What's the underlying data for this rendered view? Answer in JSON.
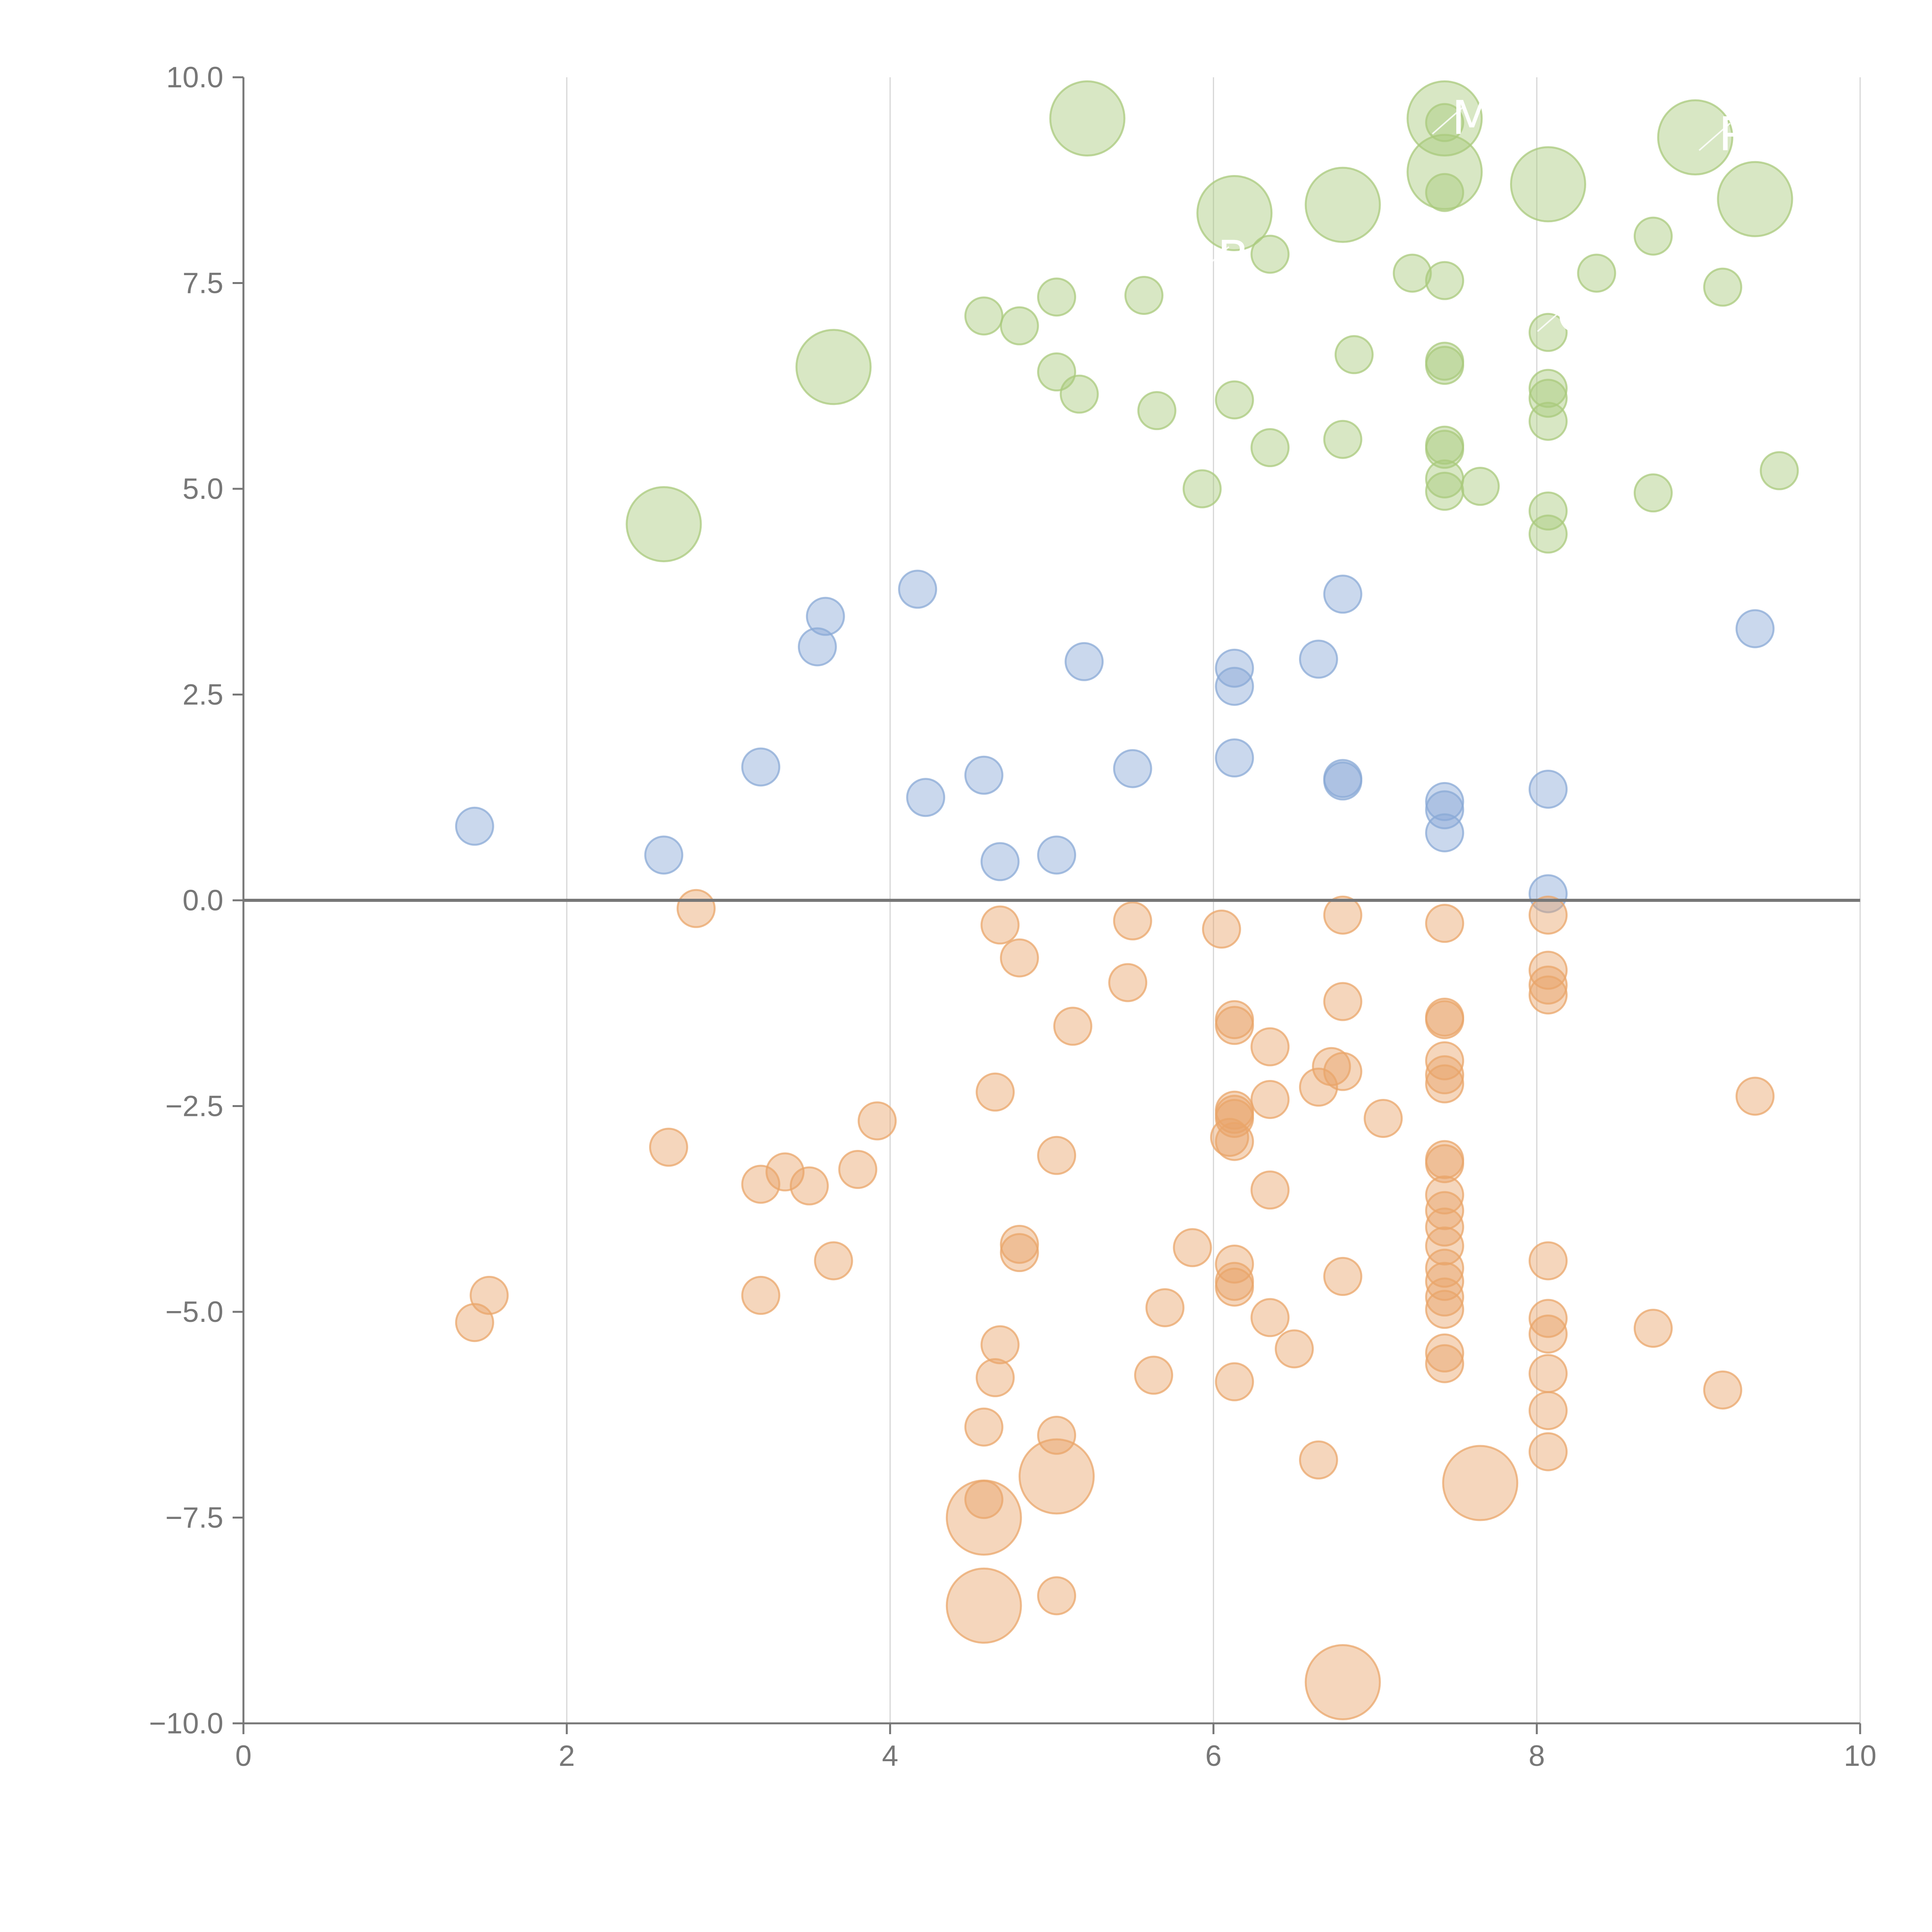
{
  "chart_data": {
    "type": "scatter",
    "title": "",
    "xlabel": "",
    "ylabel": "",
    "xlim": [
      0,
      10
    ],
    "ylim": [
      -10,
      10
    ],
    "grid": "vertical",
    "reference_line_y": 0,
    "xticks": [
      0,
      2,
      4,
      6,
      8,
      10
    ],
    "xtick_labels": [
      "0",
      "2",
      "4",
      "6",
      "8",
      "10"
    ],
    "yticks": [
      -10,
      -7.5,
      -5,
      -2.5,
      0,
      2.5,
      5,
      7.5,
      10
    ],
    "ytick_labels": [
      "−10.0",
      "−7.5",
      "−5.0",
      "−2.5",
      "0.0",
      "2.5",
      "5.0",
      "7.5",
      "10.0"
    ],
    "annotations": [
      {
        "text": "M",
        "x": 7.45,
        "y": 9.5
      },
      {
        "text": "P",
        "x": 9.1,
        "y": 9.3
      },
      {
        "text": "B",
        "x": 6.0,
        "y": 7.8
      },
      {
        "text": "C",
        "x": 8.1,
        "y": 7.1
      }
    ],
    "series": [
      {
        "name": "high",
        "color": "#a9c97c",
        "points": [
          [
            5.22,
            9.5,
            2
          ],
          [
            7.43,
            9.5,
            2
          ],
          [
            7.43,
            9.45,
            1
          ],
          [
            8.98,
            9.27,
            2
          ],
          [
            7.43,
            8.85,
            2
          ],
          [
            8.07,
            8.7,
            2
          ],
          [
            7.43,
            8.6,
            1
          ],
          [
            6.8,
            8.45,
            2
          ],
          [
            9.35,
            8.52,
            2
          ],
          [
            6.13,
            8.35,
            2
          ],
          [
            8.72,
            8.07,
            1
          ],
          [
            6.35,
            7.85,
            1
          ],
          [
            8.37,
            7.62,
            1
          ],
          [
            7.23,
            7.62,
            1
          ],
          [
            7.43,
            7.53,
            1
          ],
          [
            9.15,
            7.45,
            1
          ],
          [
            5.57,
            7.35,
            1
          ],
          [
            5.03,
            7.33,
            1
          ],
          [
            4.58,
            7.1,
            1
          ],
          [
            4.8,
            6.98,
            1
          ],
          [
            8.07,
            6.9,
            1
          ],
          [
            6.87,
            6.63,
            1
          ],
          [
            7.43,
            6.55,
            1
          ],
          [
            7.43,
            6.5,
            1
          ],
          [
            3.65,
            6.48,
            2
          ],
          [
            5.03,
            6.42,
            1
          ],
          [
            8.07,
            6.22,
            1
          ],
          [
            5.17,
            6.15,
            1
          ],
          [
            8.07,
            6.1,
            1
          ],
          [
            6.13,
            6.08,
            1
          ],
          [
            5.65,
            5.95,
            1
          ],
          [
            8.07,
            5.82,
            1
          ],
          [
            6.8,
            5.6,
            1
          ],
          [
            7.43,
            5.53,
            1
          ],
          [
            7.43,
            5.48,
            1
          ],
          [
            6.35,
            5.5,
            1
          ],
          [
            9.5,
            5.22,
            1
          ],
          [
            7.43,
            5.12,
            1
          ],
          [
            7.65,
            5.03,
            1
          ],
          [
            5.93,
            5.0,
            1
          ],
          [
            7.43,
            4.97,
            1
          ],
          [
            8.72,
            4.95,
            1
          ],
          [
            8.07,
            4.73,
            1
          ],
          [
            2.6,
            4.57,
            2
          ],
          [
            8.07,
            4.45,
            1
          ]
        ]
      },
      {
        "name": "mid",
        "color": "#8aa9d6",
        "points": [
          [
            4.17,
            3.78,
            1
          ],
          [
            6.8,
            3.72,
            1
          ],
          [
            3.6,
            3.45,
            1
          ],
          [
            9.35,
            3.3,
            1
          ],
          [
            3.55,
            3.08,
            1
          ],
          [
            6.65,
            2.93,
            1
          ],
          [
            5.2,
            2.9,
            1
          ],
          [
            6.13,
            2.82,
            1
          ],
          [
            6.13,
            2.6,
            1
          ],
          [
            6.13,
            1.73,
            1
          ],
          [
            3.2,
            1.62,
            1
          ],
          [
            5.5,
            1.6,
            1
          ],
          [
            4.58,
            1.52,
            1
          ],
          [
            6.8,
            1.48,
            1
          ],
          [
            6.8,
            1.45,
            1
          ],
          [
            8.07,
            1.35,
            1
          ],
          [
            4.22,
            1.25,
            1
          ],
          [
            7.43,
            1.2,
            1
          ],
          [
            7.43,
            1.1,
            1
          ],
          [
            1.43,
            0.9,
            1
          ],
          [
            7.43,
            0.82,
            1
          ],
          [
            2.6,
            0.55,
            1
          ],
          [
            5.03,
            0.55,
            1
          ],
          [
            4.68,
            0.47,
            1
          ],
          [
            8.07,
            0.08,
            1
          ]
        ]
      },
      {
        "name": "low",
        "color": "#e9a56a",
        "points": [
          [
            2.8,
            -0.1,
            1
          ],
          [
            6.8,
            -0.18,
            1
          ],
          [
            8.07,
            -0.18,
            1
          ],
          [
            5.5,
            -0.25,
            1
          ],
          [
            7.43,
            -0.28,
            1
          ],
          [
            4.68,
            -0.3,
            1
          ],
          [
            6.05,
            -0.35,
            1
          ],
          [
            4.8,
            -0.7,
            1
          ],
          [
            8.07,
            -0.85,
            1
          ],
          [
            5.47,
            -1.0,
            1
          ],
          [
            8.07,
            -1.03,
            1
          ],
          [
            8.07,
            -1.15,
            1
          ],
          [
            6.8,
            -1.23,
            1
          ],
          [
            7.43,
            -1.42,
            1
          ],
          [
            7.43,
            -1.45,
            1
          ],
          [
            6.13,
            -1.45,
            1
          ],
          [
            6.13,
            -1.52,
            1
          ],
          [
            5.13,
            -1.53,
            1
          ],
          [
            6.35,
            -1.78,
            1
          ],
          [
            7.43,
            -1.95,
            1
          ],
          [
            6.73,
            -2.02,
            1
          ],
          [
            6.8,
            -2.08,
            1
          ],
          [
            7.43,
            -2.12,
            1
          ],
          [
            7.43,
            -2.23,
            1
          ],
          [
            6.65,
            -2.27,
            1
          ],
          [
            4.65,
            -2.33,
            1
          ],
          [
            6.35,
            -2.42,
            1
          ],
          [
            9.35,
            -2.38,
            1
          ],
          [
            6.13,
            -2.55,
            1
          ],
          [
            6.13,
            -2.6,
            1
          ],
          [
            6.13,
            -2.65,
            1
          ],
          [
            7.05,
            -2.65,
            1
          ],
          [
            3.92,
            -2.68,
            1
          ],
          [
            6.1,
            -2.88,
            1
          ],
          [
            6.13,
            -2.93,
            1
          ],
          [
            2.63,
            -3.0,
            1
          ],
          [
            5.03,
            -3.1,
            1
          ],
          [
            7.43,
            -3.15,
            1
          ],
          [
            7.43,
            -3.2,
            1
          ],
          [
            3.8,
            -3.27,
            1
          ],
          [
            3.35,
            -3.3,
            1
          ],
          [
            3.2,
            -3.45,
            1
          ],
          [
            3.5,
            -3.47,
            1
          ],
          [
            6.35,
            -3.52,
            1
          ],
          [
            7.43,
            -3.58,
            1
          ],
          [
            7.43,
            -3.77,
            1
          ],
          [
            7.43,
            -3.97,
            1
          ],
          [
            7.43,
            -4.2,
            1
          ],
          [
            4.8,
            -4.18,
            1
          ],
          [
            5.87,
            -4.22,
            1
          ],
          [
            4.8,
            -4.28,
            1
          ],
          [
            3.65,
            -4.38,
            1
          ],
          [
            8.07,
            -4.38,
            1
          ],
          [
            6.13,
            -4.42,
            1
          ],
          [
            7.43,
            -4.47,
            1
          ],
          [
            6.8,
            -4.57,
            1
          ],
          [
            7.43,
            -4.63,
            1
          ],
          [
            6.13,
            -4.63,
            1
          ],
          [
            6.13,
            -4.7,
            1
          ],
          [
            7.43,
            -4.82,
            1
          ],
          [
            1.52,
            -4.8,
            1
          ],
          [
            3.2,
            -4.8,
            1
          ],
          [
            5.7,
            -4.95,
            1
          ],
          [
            7.43,
            -4.97,
            1
          ],
          [
            6.35,
            -5.07,
            1
          ],
          [
            8.07,
            -5.08,
            1
          ],
          [
            1.43,
            -5.13,
            1
          ],
          [
            8.72,
            -5.2,
            1
          ],
          [
            8.07,
            -5.27,
            1
          ],
          [
            4.68,
            -5.4,
            1
          ],
          [
            6.5,
            -5.45,
            1
          ],
          [
            7.43,
            -5.5,
            1
          ],
          [
            7.43,
            -5.63,
            1
          ],
          [
            8.07,
            -5.75,
            1
          ],
          [
            5.63,
            -5.77,
            1
          ],
          [
            4.65,
            -5.8,
            1
          ],
          [
            6.13,
            -5.85,
            1
          ],
          [
            9.15,
            -5.95,
            1
          ],
          [
            8.07,
            -6.2,
            1
          ],
          [
            4.58,
            -6.4,
            1
          ],
          [
            5.03,
            -6.5,
            1
          ],
          [
            8.07,
            -6.7,
            1
          ],
          [
            6.65,
            -6.8,
            1
          ],
          [
            5.03,
            -7.0,
            2
          ],
          [
            7.65,
            -7.08,
            2
          ],
          [
            4.58,
            -7.28,
            1
          ],
          [
            4.58,
            -7.5,
            2
          ],
          [
            5.03,
            -8.45,
            1
          ],
          [
            4.58,
            -8.57,
            2
          ],
          [
            6.8,
            -9.5,
            2
          ]
        ]
      }
    ]
  }
}
